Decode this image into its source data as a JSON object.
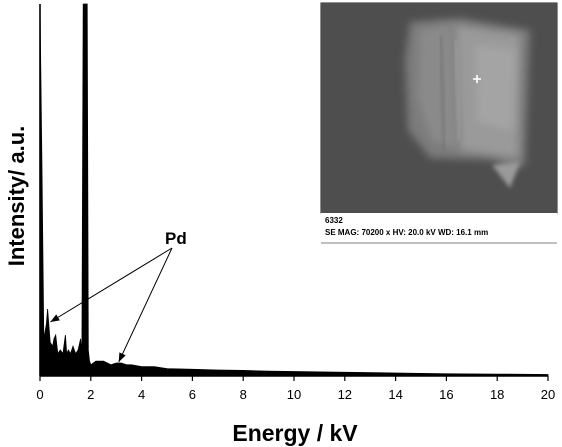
{
  "chart_data": {
    "type": "line",
    "xlabel": "Energy / kV",
    "ylabel": "Intensity/ a.u.",
    "xlim": [
      0,
      20
    ],
    "x_ticks": [
      0,
      2,
      4,
      6,
      8,
      10,
      12,
      14,
      16,
      18,
      20
    ],
    "grid": false,
    "legend": "none",
    "series": [
      {
        "x": [
          0.0,
          0.08,
          0.15,
          0.25,
          0.3,
          0.4,
          0.5,
          0.55,
          0.62,
          0.7,
          0.8,
          0.9,
          1.0,
          1.05,
          1.12,
          1.2,
          1.3,
          1.4,
          1.5,
          1.6,
          1.65,
          1.7,
          1.73,
          1.76,
          1.8,
          1.83,
          1.86,
          1.9,
          1.95,
          2.0,
          2.2,
          2.5,
          2.8,
          3.0,
          3.2,
          3.4,
          3.6,
          4.0,
          4.5,
          5.0,
          6.0,
          7.0,
          8.0,
          9.0,
          10.0,
          12.0,
          14.0,
          16.0,
          18.0,
          20.0
        ],
        "y": [
          100,
          55,
          10,
          14,
          18,
          9,
          8,
          10,
          11,
          6,
          7,
          6,
          11,
          6,
          7,
          6,
          8,
          6,
          7,
          10,
          6,
          100,
          100,
          100,
          100,
          100,
          100,
          7,
          4,
          3,
          4,
          4,
          3,
          3.5,
          3.5,
          3,
          3,
          2.5,
          2.5,
          2,
          1.8,
          1.6,
          1.5,
          1.3,
          1.2,
          1.0,
          0.8,
          0.6,
          0.5,
          0.4
        ]
      }
    ],
    "annotations": [
      {
        "text": "Pd",
        "x": 5.3,
        "targets": [
          {
            "x": 0.25
          },
          {
            "x": 3.1
          }
        ]
      }
    ]
  },
  "inset": {
    "sample_id": "6332",
    "caption": "SE  MAG: 70200 x  HV: 20.0 kV  WD: 16.1 mm"
  }
}
